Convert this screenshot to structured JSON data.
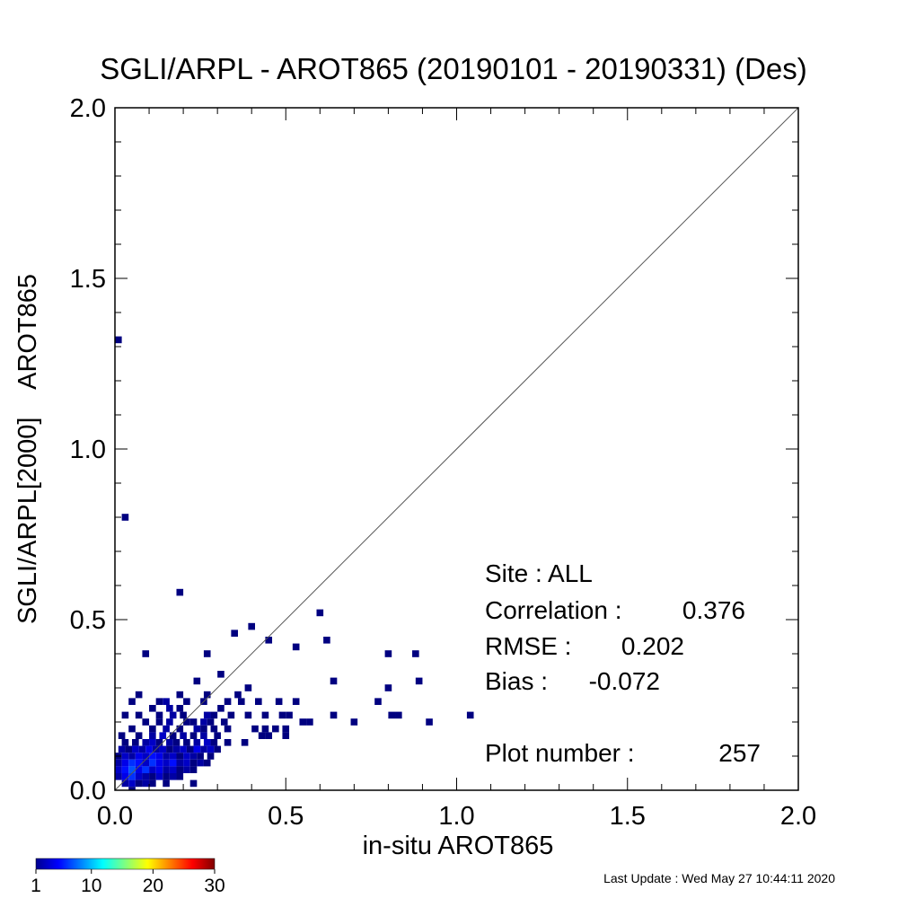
{
  "chart_data": {
    "type": "heatmap",
    "title": "SGLI/ARPL - AROT865 (20190101 - 20190331) (Des)",
    "xlabel": "in-situ AROT865",
    "ylabel": "SGLI/ARPL[2000]    AROT865",
    "xlim": [
      0.0,
      2.0
    ],
    "ylim": [
      0.0,
      2.0
    ],
    "x_ticks": [
      "0.0",
      "0.5",
      "1.0",
      "1.5",
      "2.0"
    ],
    "y_ticks": [
      "0.0",
      "0.5",
      "1.0",
      "1.5",
      "2.0"
    ],
    "reference_line": "1:1",
    "bin_size": 0.02,
    "colorbar": {
      "min": 1,
      "max": 30,
      "ticks": [
        "1",
        "10",
        "20",
        "30"
      ],
      "colormap": "jet"
    },
    "cells": [
      [
        0.01,
        1.32,
        1
      ],
      [
        0.03,
        0.8,
        1
      ],
      [
        0.19,
        0.58,
        1
      ],
      [
        0.6,
        0.52,
        1
      ],
      [
        0.4,
        0.48,
        1
      ],
      [
        0.35,
        0.46,
        1
      ],
      [
        0.62,
        0.44,
        1
      ],
      [
        0.45,
        0.44,
        1
      ],
      [
        0.53,
        0.42,
        1
      ],
      [
        0.09,
        0.4,
        1
      ],
      [
        0.27,
        0.4,
        1
      ],
      [
        0.8,
        0.4,
        1
      ],
      [
        0.88,
        0.4,
        1
      ],
      [
        0.31,
        0.34,
        1
      ],
      [
        0.24,
        0.32,
        1
      ],
      [
        0.64,
        0.32,
        1
      ],
      [
        0.89,
        0.32,
        1
      ],
      [
        0.8,
        0.3,
        1
      ],
      [
        0.39,
        0.3,
        1
      ],
      [
        0.07,
        0.28,
        1
      ],
      [
        0.19,
        0.28,
        1
      ],
      [
        0.27,
        0.28,
        1
      ],
      [
        0.36,
        0.28,
        1
      ],
      [
        0.05,
        0.26,
        1
      ],
      [
        0.13,
        0.26,
        1
      ],
      [
        0.15,
        0.26,
        2
      ],
      [
        0.21,
        0.26,
        1
      ],
      [
        0.26,
        0.26,
        1
      ],
      [
        0.33,
        0.26,
        1
      ],
      [
        0.37,
        0.26,
        1
      ],
      [
        0.42,
        0.26,
        1
      ],
      [
        0.48,
        0.26,
        1
      ],
      [
        0.53,
        0.26,
        1
      ],
      [
        0.77,
        0.26,
        1
      ],
      [
        0.11,
        0.24,
        1
      ],
      [
        0.16,
        0.24,
        2
      ],
      [
        0.19,
        0.24,
        1
      ],
      [
        0.31,
        0.24,
        1
      ],
      [
        0.03,
        0.22,
        1
      ],
      [
        0.07,
        0.22,
        1
      ],
      [
        0.13,
        0.22,
        1
      ],
      [
        0.17,
        0.22,
        2
      ],
      [
        0.2,
        0.22,
        1
      ],
      [
        0.27,
        0.22,
        2
      ],
      [
        0.29,
        0.22,
        1
      ],
      [
        0.34,
        0.22,
        1
      ],
      [
        0.39,
        0.22,
        1
      ],
      [
        0.44,
        0.22,
        1
      ],
      [
        0.49,
        0.22,
        1
      ],
      [
        0.51,
        0.22,
        1
      ],
      [
        0.64,
        0.22,
        1
      ],
      [
        0.81,
        0.22,
        1
      ],
      [
        0.83,
        0.22,
        1
      ],
      [
        1.04,
        0.22,
        1
      ],
      [
        0.09,
        0.2,
        1
      ],
      [
        0.13,
        0.2,
        1
      ],
      [
        0.16,
        0.2,
        2
      ],
      [
        0.21,
        0.2,
        1
      ],
      [
        0.23,
        0.2,
        1
      ],
      [
        0.26,
        0.2,
        2
      ],
      [
        0.28,
        0.2,
        1
      ],
      [
        0.32,
        0.2,
        1
      ],
      [
        0.55,
        0.2,
        1
      ],
      [
        0.57,
        0.2,
        1
      ],
      [
        0.7,
        0.2,
        1
      ],
      [
        0.92,
        0.2,
        1
      ],
      [
        0.05,
        0.18,
        1
      ],
      [
        0.11,
        0.18,
        1
      ],
      [
        0.15,
        0.18,
        2
      ],
      [
        0.19,
        0.18,
        1
      ],
      [
        0.24,
        0.18,
        2
      ],
      [
        0.26,
        0.18,
        1
      ],
      [
        0.29,
        0.18,
        1
      ],
      [
        0.33,
        0.18,
        1
      ],
      [
        0.41,
        0.18,
        1
      ],
      [
        0.44,
        0.18,
        1
      ],
      [
        0.47,
        0.18,
        1
      ],
      [
        0.5,
        0.18,
        1
      ],
      [
        0.02,
        0.16,
        1
      ],
      [
        0.07,
        0.16,
        1
      ],
      [
        0.11,
        0.16,
        2
      ],
      [
        0.14,
        0.16,
        3
      ],
      [
        0.17,
        0.16,
        1
      ],
      [
        0.2,
        0.16,
        2
      ],
      [
        0.23,
        0.16,
        1
      ],
      [
        0.26,
        0.16,
        2
      ],
      [
        0.3,
        0.16,
        1
      ],
      [
        0.43,
        0.16,
        1
      ],
      [
        0.45,
        0.16,
        1
      ],
      [
        0.5,
        0.16,
        1
      ],
      [
        0.03,
        0.14,
        1
      ],
      [
        0.06,
        0.14,
        1
      ],
      [
        0.09,
        0.14,
        2
      ],
      [
        0.11,
        0.14,
        3
      ],
      [
        0.13,
        0.14,
        1
      ],
      [
        0.16,
        0.14,
        2
      ],
      [
        0.18,
        0.14,
        1
      ],
      [
        0.21,
        0.14,
        1
      ],
      [
        0.24,
        0.14,
        2
      ],
      [
        0.27,
        0.14,
        3
      ],
      [
        0.29,
        0.14,
        1
      ],
      [
        0.33,
        0.14,
        1
      ],
      [
        0.38,
        0.14,
        1
      ],
      [
        0.02,
        0.12,
        2
      ],
      [
        0.04,
        0.12,
        1
      ],
      [
        0.06,
        0.12,
        3
      ],
      [
        0.08,
        0.12,
        2
      ],
      [
        0.1,
        0.12,
        4
      ],
      [
        0.12,
        0.12,
        2
      ],
      [
        0.14,
        0.12,
        3
      ],
      [
        0.16,
        0.12,
        1
      ],
      [
        0.18,
        0.12,
        2
      ],
      [
        0.2,
        0.12,
        3
      ],
      [
        0.22,
        0.12,
        1
      ],
      [
        0.24,
        0.12,
        4
      ],
      [
        0.26,
        0.12,
        2
      ],
      [
        0.28,
        0.12,
        3
      ],
      [
        0.3,
        0.12,
        1
      ],
      [
        0.01,
        0.1,
        1
      ],
      [
        0.03,
        0.1,
        3
      ],
      [
        0.05,
        0.1,
        2
      ],
      [
        0.07,
        0.1,
        4
      ],
      [
        0.09,
        0.1,
        3
      ],
      [
        0.11,
        0.1,
        5
      ],
      [
        0.13,
        0.1,
        4
      ],
      [
        0.15,
        0.1,
        2
      ],
      [
        0.17,
        0.1,
        3
      ],
      [
        0.19,
        0.1,
        1
      ],
      [
        0.21,
        0.1,
        3
      ],
      [
        0.23,
        0.1,
        2
      ],
      [
        0.25,
        0.1,
        1
      ],
      [
        0.28,
        0.1,
        1
      ],
      [
        0.01,
        0.08,
        2
      ],
      [
        0.03,
        0.08,
        4
      ],
      [
        0.05,
        0.08,
        6
      ],
      [
        0.07,
        0.08,
        5
      ],
      [
        0.09,
        0.08,
        3
      ],
      [
        0.11,
        0.08,
        6
      ],
      [
        0.13,
        0.08,
        4
      ],
      [
        0.15,
        0.08,
        3
      ],
      [
        0.17,
        0.08,
        5
      ],
      [
        0.19,
        0.08,
        2
      ],
      [
        0.21,
        0.08,
        3
      ],
      [
        0.23,
        0.08,
        1
      ],
      [
        0.25,
        0.08,
        2
      ],
      [
        0.27,
        0.08,
        1
      ],
      [
        0.01,
        0.06,
        3
      ],
      [
        0.03,
        0.06,
        5
      ],
      [
        0.05,
        0.06,
        7
      ],
      [
        0.07,
        0.06,
        4
      ],
      [
        0.09,
        0.06,
        6
      ],
      [
        0.11,
        0.06,
        3
      ],
      [
        0.13,
        0.06,
        4
      ],
      [
        0.15,
        0.06,
        2
      ],
      [
        0.17,
        0.06,
        3
      ],
      [
        0.19,
        0.06,
        1
      ],
      [
        0.21,
        0.06,
        2
      ],
      [
        0.23,
        0.06,
        1
      ],
      [
        0.01,
        0.04,
        2
      ],
      [
        0.03,
        0.04,
        4
      ],
      [
        0.05,
        0.04,
        6
      ],
      [
        0.07,
        0.04,
        3
      ],
      [
        0.09,
        0.04,
        2
      ],
      [
        0.11,
        0.04,
        1
      ],
      [
        0.13,
        0.04,
        3
      ],
      [
        0.15,
        0.04,
        1
      ],
      [
        0.17,
        0.04,
        2
      ],
      [
        0.19,
        0.04,
        1
      ],
      [
        0.03,
        0.02,
        2
      ],
      [
        0.05,
        0.02,
        3
      ],
      [
        0.07,
        0.02,
        1
      ],
      [
        0.09,
        0.02,
        2
      ],
      [
        0.11,
        0.02,
        1
      ],
      [
        0.15,
        0.02,
        1
      ],
      [
        0.23,
        0.02,
        1
      ],
      [
        0.05,
        0.0,
        1
      ]
    ]
  },
  "stats": {
    "site": "Site : ALL",
    "correlation_label": "Correlation :",
    "correlation_value": "0.376",
    "rmse_label": "RMSE :",
    "rmse_value": "0.202",
    "bias_label": "Bias :",
    "bias_value": "-0.072",
    "plot_number_label": "Plot number :",
    "plot_number_value": "257"
  },
  "footer": {
    "last_update": "Last Update : Wed May 27 10:44:11 2020"
  },
  "colors": {
    "low": "#00008f",
    "mid": "#00ffff",
    "high": "#800000",
    "frame": "#000000"
  }
}
